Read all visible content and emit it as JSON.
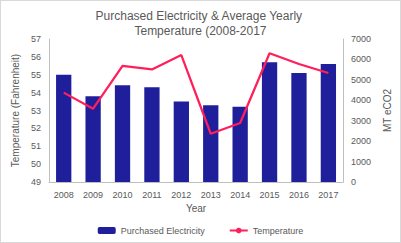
{
  "chart_data": {
    "type": "bar",
    "title": "Purchased Electricity & Average Yearly Temperature (2008-2017",
    "x_label": "Year",
    "y_label": "Temperature (Fahrenheit)",
    "y2_label": "MT eCO2",
    "categories": [
      "2008",
      "2009",
      "2010",
      "2011",
      "2012",
      "2013",
      "2014",
      "2015",
      "2016",
      "2017"
    ],
    "series": [
      {
        "name": "Purchased Electricity",
        "type": "bar",
        "axis": "y2",
        "color": "#1f1f9c",
        "values": [
          5250,
          4200,
          4730,
          4640,
          3940,
          3760,
          3680,
          5860,
          5340,
          5780
        ]
      },
      {
        "name": "Temperature",
        "type": "line",
        "color": "#ff1f5a",
        "values": [
          54.0,
          53.1,
          55.5,
          55.3,
          56.1,
          51.7,
          52.3,
          56.2,
          55.6,
          55.1
        ]
      }
    ],
    "ylim": [
      49,
      57
    ],
    "yticks": [
      49,
      50,
      51,
      52,
      53,
      54,
      55,
      56,
      57
    ],
    "y2lim": [
      0,
      7000
    ],
    "y2ticks": [
      0,
      1000,
      2000,
      3000,
      4000,
      5000,
      6000,
      7000
    ],
    "grid": false,
    "legend": "bottom"
  }
}
